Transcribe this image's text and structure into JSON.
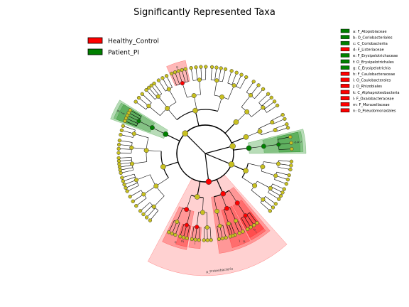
{
  "chart_data": {
    "type": "cladogram",
    "title": "Significantly Represented Taxa",
    "groups": [
      {
        "name": "Healthy_Control",
        "color": "#ff0000"
      },
      {
        "name": "Patient_PI",
        "color": "#008000"
      }
    ],
    "biomarkers": [
      {
        "key": "a",
        "taxon": "F_Atopobiaceae",
        "group": "Patient_PI"
      },
      {
        "key": "b",
        "taxon": "O_Coriobacteriales",
        "group": "Patient_PI"
      },
      {
        "key": "c",
        "taxon": "C_Coriobacteriia",
        "group": "Patient_PI"
      },
      {
        "key": "d",
        "taxon": "F_Listeriaceae",
        "group": "Healthy_Control"
      },
      {
        "key": "e",
        "taxon": "F_Erysipelotrichaceae",
        "group": "Patient_PI"
      },
      {
        "key": "f",
        "taxon": "O_Erysipelotrichales",
        "group": "Patient_PI"
      },
      {
        "key": "g",
        "taxon": "C_Erysipelotrichia",
        "group": "Patient_PI"
      },
      {
        "key": "h",
        "taxon": "F_Caulobacteraceae",
        "group": "Healthy_Control"
      },
      {
        "key": "i",
        "taxon": "O_Caulobacterales",
        "group": "Healthy_Control"
      },
      {
        "key": "j",
        "taxon": "O_Rhizobiales",
        "group": "Healthy_Control"
      },
      {
        "key": "k",
        "taxon": "C_Alphaproteobacteria",
        "group": "Healthy_Control"
      },
      {
        "key": "l",
        "taxon": "F_Oxalobacteraceae",
        "group": "Healthy_Control"
      },
      {
        "key": "m",
        "taxon": "F_Moraxellaceae",
        "group": "Healthy_Control"
      },
      {
        "key": "n",
        "taxon": "O_Pseudomonadales",
        "group": "Healthy_Control"
      }
    ],
    "phylum_label": "p_Proteobacteria",
    "node_color_default": "#c8c020"
  }
}
